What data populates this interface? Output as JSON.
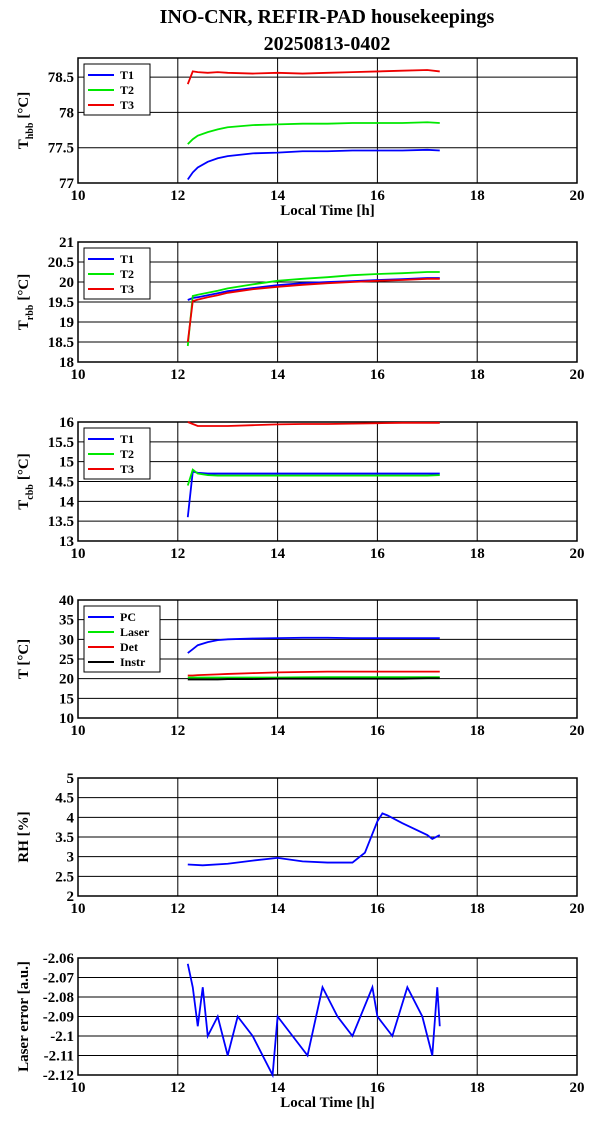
{
  "title": "INO-CNR, REFIR-PAD housekeepings",
  "subtitle": "20250813-0402",
  "chart_data": [
    {
      "type": "line",
      "ylabel": {
        "main": "T",
        "sub": "hbb",
        "unit": "[°C]"
      },
      "xlabel": "Local Time [h]",
      "xlim": [
        10,
        20
      ],
      "xticks": [
        10,
        12,
        14,
        16,
        18,
        20
      ],
      "ylim": [
        77,
        78.77
      ],
      "yticks": [
        77,
        77.5,
        78,
        78.5
      ],
      "grid": true,
      "legend": "upper left",
      "x": [
        12.2,
        12.3,
        12.4,
        12.6,
        12.8,
        13,
        13.5,
        14,
        14.5,
        15,
        15.5,
        16,
        16.5,
        17,
        17.25
      ],
      "series": [
        {
          "name": "T1",
          "color": "#0000ff",
          "values": [
            77.05,
            77.15,
            77.22,
            77.3,
            77.35,
            77.38,
            77.42,
            77.43,
            77.45,
            77.45,
            77.46,
            77.46,
            77.46,
            77.47,
            77.46
          ]
        },
        {
          "name": "T2",
          "color": "#00e800",
          "values": [
            77.55,
            77.62,
            77.67,
            77.72,
            77.76,
            77.79,
            77.82,
            77.83,
            77.84,
            77.84,
            77.85,
            77.85,
            77.85,
            77.86,
            77.85
          ]
        },
        {
          "name": "T3",
          "color": "#ee0000",
          "values": [
            78.4,
            78.58,
            78.57,
            78.56,
            78.57,
            78.56,
            78.55,
            78.56,
            78.55,
            78.56,
            78.57,
            78.58,
            78.59,
            78.6,
            78.58
          ]
        }
      ]
    },
    {
      "type": "line",
      "ylabel": {
        "main": "T",
        "sub": "rbb",
        "unit": "[°C]"
      },
      "xlim": [
        10,
        20
      ],
      "xticks": [
        10,
        12,
        14,
        16,
        18,
        20
      ],
      "ylim": [
        18,
        21
      ],
      "yticks": [
        18,
        18.5,
        19,
        19.5,
        20,
        20.5,
        21
      ],
      "grid": true,
      "legend": "upper left",
      "x": [
        12.2,
        12.3,
        12.4,
        12.6,
        12.8,
        13,
        13.5,
        14,
        14.5,
        15,
        15.5,
        16,
        16.5,
        17,
        17.25
      ],
      "series": [
        {
          "name": "T1",
          "color": "#0000ff",
          "values": [
            19.55,
            19.6,
            19.62,
            19.67,
            19.72,
            19.77,
            19.85,
            19.92,
            19.97,
            20.0,
            20.02,
            20.05,
            20.07,
            20.1,
            20.1
          ]
        },
        {
          "name": "T2",
          "color": "#00e800",
          "values": [
            18.4,
            19.65,
            19.68,
            19.73,
            19.78,
            19.84,
            19.94,
            20.03,
            20.08,
            20.12,
            20.17,
            20.2,
            20.22,
            20.25,
            20.25
          ]
        },
        {
          "name": "T3",
          "color": "#ee0000",
          "values": [
            18.5,
            19.52,
            19.56,
            19.62,
            19.67,
            19.73,
            19.82,
            19.88,
            19.93,
            19.97,
            20.0,
            20.03,
            20.05,
            20.08,
            20.08
          ]
        }
      ]
    },
    {
      "type": "line",
      "ylabel": {
        "main": "T",
        "sub": "cbb",
        "unit": "[°C]"
      },
      "xlim": [
        10,
        20
      ],
      "xticks": [
        10,
        12,
        14,
        16,
        18,
        20
      ],
      "ylim": [
        13,
        16
      ],
      "yticks": [
        13,
        13.5,
        14,
        14.5,
        15,
        15.5,
        16
      ],
      "grid": true,
      "legend": "upper left",
      "x": [
        12.2,
        12.3,
        12.4,
        12.6,
        12.8,
        13,
        13.5,
        14,
        14.5,
        15,
        15.5,
        16,
        16.5,
        17,
        17.25
      ],
      "series": [
        {
          "name": "T1",
          "color": "#0000ff",
          "values": [
            13.6,
            14.75,
            14.72,
            14.7,
            14.7,
            14.7,
            14.7,
            14.7,
            14.7,
            14.7,
            14.7,
            14.7,
            14.7,
            14.7,
            14.7
          ]
        },
        {
          "name": "T2",
          "color": "#00e800",
          "values": [
            14.4,
            14.8,
            14.7,
            14.66,
            14.65,
            14.65,
            14.65,
            14.65,
            14.65,
            14.65,
            14.65,
            14.65,
            14.65,
            14.65,
            14.66
          ]
        },
        {
          "name": "T3",
          "color": "#ee0000",
          "values": [
            16.0,
            15.95,
            15.9,
            15.9,
            15.9,
            15.9,
            15.92,
            15.94,
            15.95,
            15.95,
            15.96,
            15.97,
            15.98,
            15.98,
            15.98
          ]
        }
      ]
    },
    {
      "type": "line",
      "ylabel": "T [°C]",
      "xlim": [
        10,
        20
      ],
      "xticks": [
        10,
        12,
        14,
        16,
        18,
        20
      ],
      "ylim": [
        10,
        40
      ],
      "yticks": [
        10,
        15,
        20,
        25,
        30,
        35,
        40
      ],
      "grid": true,
      "legend": "upper left",
      "x": [
        12.2,
        12.3,
        12.4,
        12.6,
        12.8,
        13,
        13.5,
        14,
        14.5,
        15,
        15.5,
        16,
        16.5,
        17,
        17.25
      ],
      "series": [
        {
          "name": "PC",
          "color": "#0000ff",
          "values": [
            26.5,
            27.5,
            28.5,
            29.3,
            29.8,
            30,
            30.2,
            30.3,
            30.4,
            30.4,
            30.3,
            30.3,
            30.3,
            30.3,
            30.3
          ]
        },
        {
          "name": "Laser",
          "color": "#00e800",
          "values": [
            20.3,
            20.3,
            20.3,
            20.3,
            20.3,
            20.3,
            20.3,
            20.3,
            20.35,
            20.4,
            20.4,
            20.4,
            20.4,
            20.4,
            20.4
          ]
        },
        {
          "name": "Det",
          "color": "#ee0000",
          "values": [
            20.8,
            20.8,
            20.9,
            21.0,
            21.1,
            21.2,
            21.4,
            21.6,
            21.7,
            21.8,
            21.8,
            21.8,
            21.8,
            21.8,
            21.8
          ]
        },
        {
          "name": "Instr",
          "color": "#000000",
          "values": [
            19.8,
            19.8,
            19.8,
            19.8,
            19.8,
            19.9,
            19.9,
            20.0,
            20.0,
            20.0,
            20.0,
            20.0,
            20.0,
            20.1,
            20.1
          ]
        }
      ]
    },
    {
      "type": "line",
      "ylabel": "RH [%]",
      "xlim": [
        10,
        20
      ],
      "xticks": [
        10,
        12,
        14,
        16,
        18,
        20
      ],
      "ylim": [
        2,
        5
      ],
      "yticks": [
        2,
        2.5,
        3,
        3.5,
        4,
        4.5,
        5
      ],
      "grid": true,
      "x": [
        12.2,
        12.5,
        13,
        13.5,
        14,
        14.5,
        15,
        15.5,
        15.75,
        16,
        16.1,
        16.2,
        16.5,
        17,
        17.1,
        17.25
      ],
      "series": [
        {
          "color": "#0000ff",
          "values": [
            2.8,
            2.78,
            2.82,
            2.9,
            2.97,
            2.88,
            2.85,
            2.85,
            3.1,
            3.9,
            4.1,
            4.05,
            3.85,
            3.55,
            3.45,
            3.55
          ]
        }
      ]
    },
    {
      "type": "line",
      "ylabel": "Laser error [a.u.]",
      "xlabel": "Local Time [h]",
      "xlim": [
        10,
        20
      ],
      "xticks": [
        10,
        12,
        14,
        16,
        18,
        20
      ],
      "ylim": [
        -2.12,
        -2.06
      ],
      "yticks": [
        -2.12,
        -2.11,
        -2.1,
        -2.09,
        -2.08,
        -2.07,
        -2.06
      ],
      "grid": true,
      "x": [
        12.2,
        12.3,
        12.4,
        12.5,
        12.6,
        12.8,
        13,
        13.2,
        13.5,
        13.9,
        14,
        14.3,
        14.6,
        14.9,
        15.2,
        15.5,
        15.9,
        16,
        16.3,
        16.6,
        16.9,
        17.1,
        17.2,
        17.25
      ],
      "series": [
        {
          "color": "#0000ff",
          "values": [
            -2.063,
            -2.075,
            -2.095,
            -2.075,
            -2.1,
            -2.09,
            -2.11,
            -2.09,
            -2.1,
            -2.12,
            -2.09,
            -2.1,
            -2.11,
            -2.075,
            -2.09,
            -2.1,
            -2.075,
            -2.09,
            -2.1,
            -2.075,
            -2.09,
            -2.11,
            -2.075,
            -2.095
          ]
        }
      ]
    }
  ]
}
